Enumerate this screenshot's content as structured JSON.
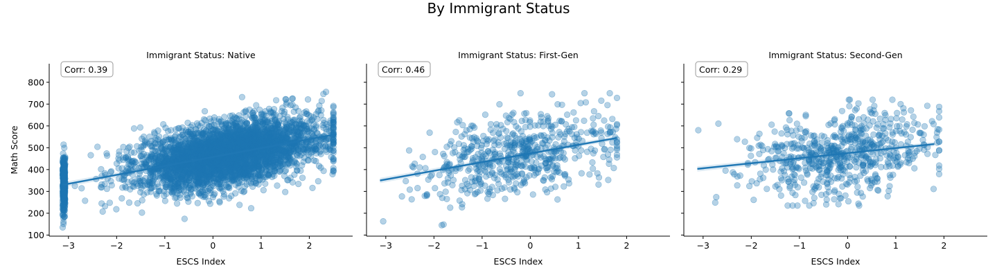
{
  "figure": {
    "title": "By Immigrant Status"
  },
  "colors": {
    "points": "#1f77b4",
    "line": "#1f77b4",
    "axes": "#000000",
    "corr_box_edge": "#999999"
  },
  "chart_data": [
    {
      "type": "scatter",
      "title": "Immigrant Status: Native",
      "xlabel": "ESCS Index",
      "ylabel": "Math Score",
      "xlim": [
        -3.4,
        2.9
      ],
      "ylim": [
        95,
        885
      ],
      "xticks": [
        -3,
        -2,
        -1,
        0,
        1,
        2
      ],
      "yticks": [
        100,
        200,
        300,
        400,
        500,
        600,
        700,
        800
      ],
      "correlation_label": "Corr: 0.39",
      "regression_line": {
        "x": [
          -3.12,
          2.51
        ],
        "y": [
          330,
          560
        ]
      },
      "points_summary": {
        "approx_count": 10000,
        "x_range": [
          -3.12,
          2.5
        ],
        "y_range": [
          135,
          855
        ],
        "corr": 0.39
      },
      "grid": false,
      "legend": "none"
    },
    {
      "type": "scatter",
      "title": "Immigrant Status: First-Gen",
      "xlabel": "ESCS Index",
      "ylabel": "",
      "xlim": [
        -3.4,
        2.9
      ],
      "ylim": [
        95,
        885
      ],
      "xticks": [
        -3,
        -2,
        -1,
        0,
        1,
        2
      ],
      "yticks": [
        100,
        200,
        300,
        400,
        500,
        600,
        700,
        800
      ],
      "correlation_label": "Corr: 0.46",
      "regression_line": {
        "x": [
          -3.12,
          1.8
        ],
        "y": [
          350,
          545
        ]
      },
      "points_summary": {
        "approx_count": 600,
        "x_range": [
          -3.1,
          1.8
        ],
        "y_range": [
          145,
          750
        ],
        "corr": 0.46
      },
      "grid": false,
      "legend": "none"
    },
    {
      "type": "scatter",
      "title": "Immigrant Status: Second-Gen",
      "xlabel": "ESCS Index",
      "ylabel": "",
      "xlim": [
        -3.4,
        2.9
      ],
      "ylim": [
        95,
        885
      ],
      "xticks": [
        -3,
        -2,
        -1,
        0,
        1,
        2
      ],
      "yticks": [
        100,
        200,
        300,
        400,
        500,
        600,
        700,
        800
      ],
      "correlation_label": "Corr: 0.29",
      "regression_line": {
        "x": [
          -3.12,
          1.8
        ],
        "y": [
          403,
          517
        ]
      },
      "points_summary": {
        "approx_count": 650,
        "x_range": [
          -3.1,
          1.9
        ],
        "y_range": [
          235,
          720
        ],
        "corr": 0.29
      },
      "grid": false,
      "legend": "none"
    }
  ]
}
